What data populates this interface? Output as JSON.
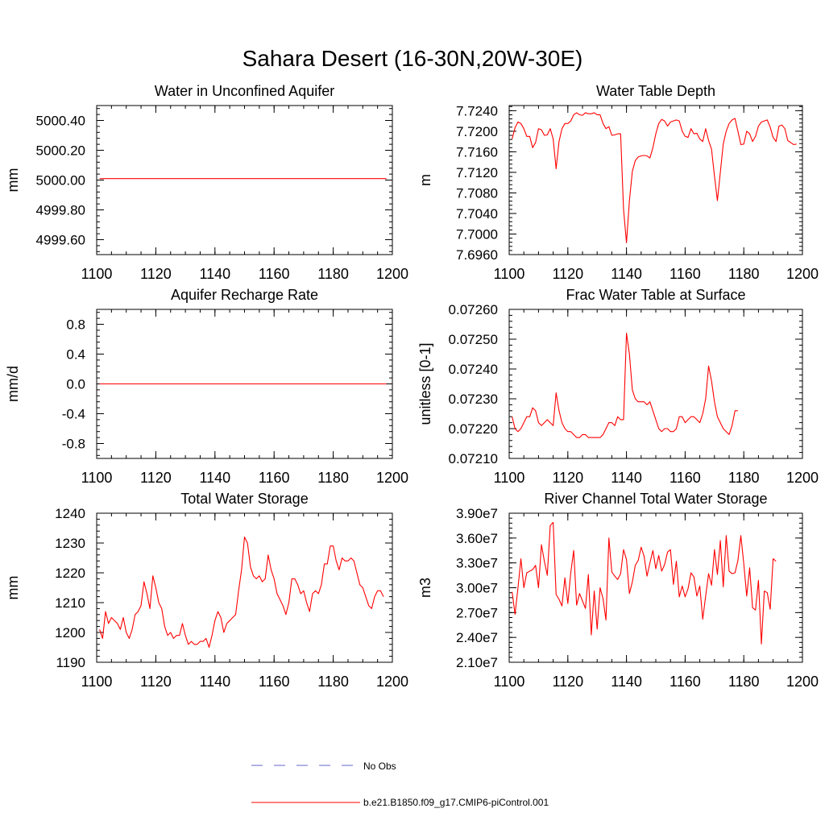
{
  "figure": {
    "title": "Sahara Desert (16-30N,20W-30E)"
  },
  "legend": {
    "entries": [
      {
        "label": "No Obs",
        "color": "#6666cc",
        "style": "dashed"
      },
      {
        "label": "b.e21.B1850.f09_g17.CMIP6-piControl.001",
        "color": "#ff0000",
        "style": "solid"
      }
    ]
  },
  "chart_data": [
    {
      "type": "line",
      "title": "Water in Unconfined Aquifer",
      "ylabel": "mm",
      "xlim": [
        1100,
        1200
      ],
      "ylim": [
        4999.5,
        5000.5
      ],
      "x_ticks": [
        1100,
        1120,
        1140,
        1160,
        1180,
        1200
      ],
      "y_ticks": [
        4999.6,
        4999.8,
        5000.0,
        5000.2,
        5000.4
      ],
      "y_tick_labels": [
        "4999.60",
        "4999.80",
        "5000.00",
        "5000.20",
        "5000.40"
      ],
      "series": [
        {
          "color": "#ff0000",
          "x": [
            1101,
            1198
          ],
          "values": [
            5000.01,
            5000.01
          ]
        }
      ]
    },
    {
      "type": "line",
      "title": "Water Table Depth",
      "ylabel": "m",
      "xlim": [
        1100,
        1200
      ],
      "ylim": [
        7.696,
        7.725
      ],
      "x_ticks": [
        1100,
        1120,
        1140,
        1160,
        1180,
        1200
      ],
      "y_ticks": [
        7.696,
        7.7,
        7.704,
        7.708,
        7.712,
        7.716,
        7.72,
        7.724
      ],
      "y_tick_labels": [
        "7.6960",
        "7.7000",
        "7.7040",
        "7.7080",
        "7.7120",
        "7.7160",
        "7.7200",
        "7.7240"
      ],
      "series": [
        {
          "color": "#ff0000",
          "x_start": 1101,
          "values": [
            7.7185,
            7.7207,
            7.7218,
            7.7215,
            7.7205,
            7.719,
            7.719,
            7.7168,
            7.7178,
            7.7205,
            7.7203,
            7.7192,
            7.7193,
            7.7205,
            7.7185,
            7.7127,
            7.718,
            7.7205,
            7.7215,
            7.7215,
            7.722,
            7.7232,
            7.7236,
            7.7232,
            7.7231,
            7.7236,
            7.7234,
            7.7234,
            7.7236,
            7.7232,
            7.7232,
            7.7215,
            7.7205,
            7.7209,
            7.7192,
            7.7193,
            7.7195,
            7.7195,
            7.7048,
            7.6983,
            7.7065,
            7.7122,
            7.7143,
            7.715,
            7.7152,
            7.7153,
            7.7152,
            7.7148,
            7.7168,
            7.7195,
            7.7215,
            7.7223,
            7.722,
            7.721,
            7.7218,
            7.722,
            7.7222,
            7.722,
            7.72,
            7.719,
            7.7188,
            7.7205,
            7.7195,
            7.7196,
            7.7185,
            7.718,
            7.7205,
            7.7182,
            7.7165,
            7.7113,
            7.7065,
            7.712,
            7.7175,
            7.72,
            7.7215,
            7.7222,
            7.7225,
            7.72,
            7.7174,
            7.7175,
            7.72,
            7.7195,
            7.718,
            7.719,
            7.721,
            7.7218,
            7.722,
            7.7222,
            7.7208,
            7.7188,
            7.718,
            7.721,
            7.7212,
            7.7205,
            7.7182,
            7.7178,
            7.7174,
            7.7175
          ]
        }
      ]
    },
    {
      "type": "line",
      "title": "Aquifer Recharge Rate",
      "ylabel": "mm/d",
      "xlim": [
        1100,
        1200
      ],
      "ylim": [
        -1.0,
        1.0
      ],
      "x_ticks": [
        1100,
        1120,
        1140,
        1160,
        1180,
        1200
      ],
      "y_ticks": [
        -0.8,
        -0.4,
        0.0,
        0.4,
        0.8
      ],
      "y_tick_labels": [
        "-0.8",
        "-0.4",
        "0.0",
        "0.4",
        "0.8"
      ],
      "series": [
        {
          "color": "#ff0000",
          "x": [
            1101,
            1198
          ],
          "values": [
            0.0,
            0.0
          ]
        }
      ]
    },
    {
      "type": "line",
      "title": "Frac Water Table at Surface",
      "ylabel": "unitless [0-1]",
      "xlim": [
        1100,
        1200
      ],
      "ylim": [
        0.0721,
        0.0726
      ],
      "x_ticks": [
        1100,
        1120,
        1140,
        1160,
        1180,
        1200
      ],
      "y_ticks": [
        0.0721,
        0.0722,
        0.0723,
        0.0724,
        0.0725,
        0.0726
      ],
      "y_tick_labels": [
        "0.07210",
        "0.07220",
        "0.07230",
        "0.07240",
        "0.07250",
        "0.07260"
      ],
      "series": [
        {
          "color": "#ff0000",
          "x_start": 1101,
          "values": [
            0.07224,
            0.0722,
            0.07219,
            0.0722,
            0.07222,
            0.07224,
            0.07224,
            0.07227,
            0.07226,
            0.07222,
            0.07221,
            0.07222,
            0.07223,
            0.07222,
            0.07221,
            0.07232,
            0.07226,
            0.07222,
            0.0722,
            0.07219,
            0.07219,
            0.07218,
            0.07217,
            0.07217,
            0.07218,
            0.07218,
            0.07217,
            0.07217,
            0.07217,
            0.07217,
            0.07217,
            0.07218,
            0.0722,
            0.07222,
            0.07222,
            0.07221,
            0.07224,
            0.07223,
            0.07223,
            0.07252,
            0.07245,
            0.07233,
            0.0723,
            0.07229,
            0.07229,
            0.07229,
            0.07228,
            0.07229,
            0.07226,
            0.07223,
            0.0722,
            0.07219,
            0.0722,
            0.0722,
            0.07219,
            0.07219,
            0.0722,
            0.07224,
            0.07224,
            0.07222,
            0.07223,
            0.07224,
            0.07224,
            0.07223,
            0.07222,
            0.07225,
            0.0723,
            0.07241,
            0.07236,
            0.07229,
            0.07224,
            0.07222,
            0.0722,
            0.07219,
            0.07218,
            0.07221,
            0.07226,
            0.07226
          ]
        }
      ]
    },
    {
      "type": "line",
      "title": "Total Water Storage",
      "ylabel": "mm",
      "xlim": [
        1100,
        1200
      ],
      "ylim": [
        1190,
        1240
      ],
      "x_ticks": [
        1100,
        1120,
        1140,
        1160,
        1180,
        1200
      ],
      "y_ticks": [
        1190,
        1200,
        1210,
        1220,
        1230,
        1240
      ],
      "y_tick_labels": [
        "1190",
        "1200",
        "1210",
        "1220",
        "1230",
        "1240"
      ],
      "series": [
        {
          "color": "#ff0000",
          "x_start": 1101,
          "values": [
            1201,
            1198,
            1207,
            1203,
            1205,
            1204,
            1203,
            1201,
            1205,
            1200,
            1198,
            1201,
            1206,
            1207,
            1209,
            1217,
            1213,
            1208,
            1219,
            1215,
            1210,
            1208,
            1202,
            1199,
            1200,
            1198,
            1199,
            1199,
            1203,
            1199,
            1196,
            1197,
            1196,
            1196,
            1197,
            1197,
            1198,
            1195,
            1199,
            1204,
            1207,
            1205,
            1200,
            1203,
            1204,
            1205,
            1206,
            1214,
            1221,
            1232,
            1230,
            1222,
            1219,
            1218,
            1219,
            1217,
            1218,
            1226,
            1221,
            1218,
            1213,
            1211,
            1209,
            1206,
            1210,
            1218,
            1218,
            1216,
            1213,
            1214,
            1210,
            1207,
            1213,
            1214,
            1213,
            1216,
            1223,
            1223,
            1229,
            1229,
            1224,
            1221,
            1225,
            1224,
            1224,
            1225,
            1224,
            1220,
            1216,
            1215,
            1212,
            1209,
            1208,
            1212,
            1214,
            1214,
            1212
          ]
        }
      ]
    },
    {
      "type": "line",
      "title": "River Channel Total Water Storage",
      "ylabel": "m3",
      "xlim": [
        1100,
        1200
      ],
      "ylim": [
        21000000,
        39000000
      ],
      "x_ticks": [
        1100,
        1120,
        1140,
        1160,
        1180,
        1200
      ],
      "y_ticks": [
        21000000,
        24000000,
        27000000,
        30000000,
        33000000,
        36000000,
        39000000
      ],
      "y_tick_labels": [
        "2.10e7",
        "2.40e7",
        "2.70e7",
        "3.00e7",
        "3.30e7",
        "3.60e7",
        "3.90e7"
      ],
      "series": [
        {
          "color": "#ff0000",
          "x_start": 1101,
          "values": [
            29500000,
            26800000,
            30000000,
            33500000,
            30000000,
            31800000,
            32000000,
            32200000,
            32700000,
            30000000,
            35200000,
            33200000,
            31500000,
            37500000,
            37900000,
            29200000,
            28600000,
            27800000,
            31200000,
            28100000,
            31800000,
            34500000,
            27900000,
            29300000,
            28400000,
            27500000,
            31600000,
            24300000,
            29600000,
            25000000,
            30000000,
            28700000,
            26100000,
            36000000,
            31900000,
            31400000,
            31000000,
            31700000,
            34600000,
            33400000,
            29300000,
            30700000,
            32700000,
            33300000,
            34900000,
            33800000,
            31400000,
            33000000,
            34500000,
            32300000,
            33900000,
            32000000,
            32800000,
            34300000,
            34600000,
            30400000,
            33200000,
            28900000,
            30200000,
            28900000,
            29900000,
            31800000,
            31300000,
            29000000,
            30200000,
            26200000,
            29000000,
            31700000,
            30300000,
            34600000,
            31600000,
            35700000,
            30100000,
            36300000,
            32000000,
            31700000,
            31800000,
            33300000,
            36300000,
            32900000,
            29000000,
            32400000,
            27600000,
            27300000,
            30900000,
            23200000,
            29600000,
            29400000,
            27400000,
            33500000,
            33200000
          ]
        }
      ]
    }
  ]
}
